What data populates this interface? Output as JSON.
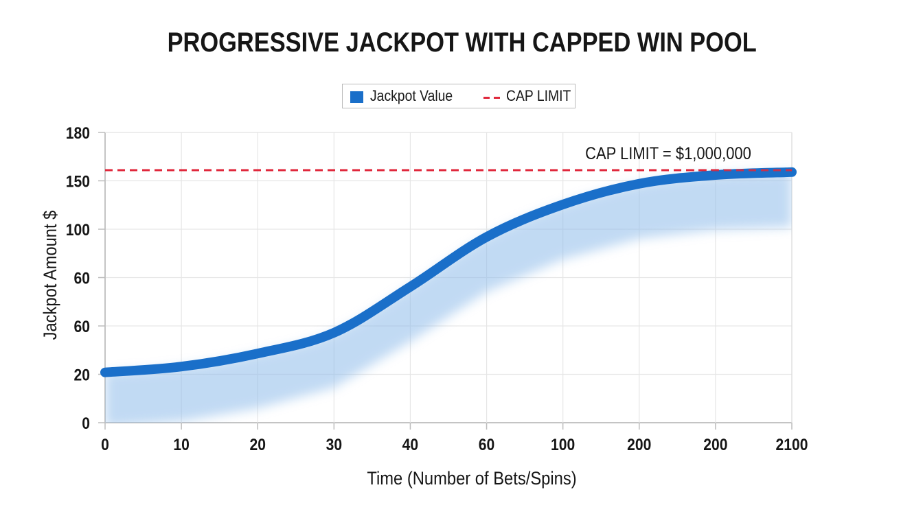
{
  "chart_data": {
    "type": "line",
    "title": "PROGRESSIVE JACKPOT WITH CAPPED WIN POOL",
    "xlabel": "Time (Number of Bets/Spins)",
    "ylabel": "Jackpot Amount $",
    "x_tick_labels": [
      "0",
      "10",
      "20",
      "30",
      "40",
      "60",
      "100",
      "200",
      "200",
      "2100"
    ],
    "y_tick_labels": [
      "0",
      "20",
      "60",
      "60",
      "100",
      "150",
      "180"
    ],
    "y_scale_note": "tick labels are equally spaced; series values given as positions on the tick index scale (0 = first tick, 6 = last tick)",
    "y_index_range": [
      0,
      6
    ],
    "grid": true,
    "legend": {
      "placement": "top-center",
      "entries": [
        {
          "label": "Jackpot Value",
          "style": "solid-swatch",
          "color": "#1a6fc9"
        },
        {
          "label": "CAP LIMIT",
          "style": "dashed",
          "color": "#e0283c"
        }
      ]
    },
    "series": [
      {
        "name": "Jackpot Value",
        "color": "#1a6fc9",
        "x_index": [
          0,
          1,
          2,
          3,
          4,
          5,
          6,
          7,
          8,
          9
        ],
        "y_index": [
          1.04,
          1.16,
          1.43,
          1.86,
          2.81,
          3.84,
          4.51,
          4.94,
          5.12,
          5.18
        ],
        "approx_values": [
          22,
          27,
          38,
          55,
          60,
          84,
          113,
          139,
          153,
          156
        ]
      }
    ],
    "cap_line": {
      "name": "CAP LIMIT",
      "color": "#e0283c",
      "y_index": 5.22,
      "approx_value": 157,
      "annotation": "CAP LIMIT = $1,000,000"
    }
  }
}
